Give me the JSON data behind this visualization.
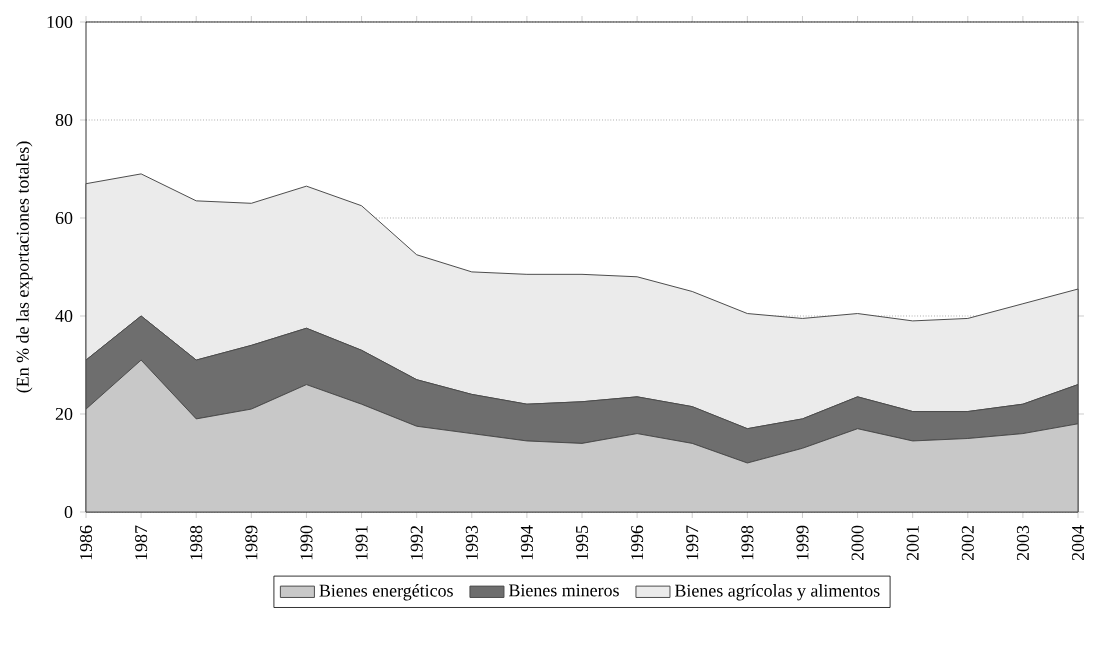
{
  "chart_data": {
    "type": "area",
    "stacked": true,
    "ylabel": "(En % de las exportaciones totales)",
    "categories": [
      "1986",
      "1987",
      "1988",
      "1989",
      "1990",
      "1991",
      "1992",
      "1993",
      "1994",
      "1995",
      "1996",
      "1997",
      "1998",
      "1999",
      "2000",
      "2001",
      "2002",
      "2003",
      "2004"
    ],
    "series": [
      {
        "name": "Bienes energéticos",
        "color": "#c8c8c8",
        "values": [
          21,
          31,
          19,
          21,
          26,
          22,
          17.5,
          16,
          14.5,
          14,
          16,
          14,
          10,
          13,
          17,
          14.5,
          15,
          16,
          18
        ]
      },
      {
        "name": "Bienes mineros",
        "color": "#6e6e6e",
        "values": [
          10,
          9,
          12,
          13,
          11.5,
          11,
          9.5,
          8,
          7.5,
          8.5,
          7.5,
          7.5,
          7,
          6,
          6.5,
          6,
          5.5,
          6,
          8
        ]
      },
      {
        "name": "Bienes agrícolas y alimentos",
        "color": "#ebebeb",
        "values": [
          36,
          29,
          32.5,
          29,
          29,
          29.5,
          25.5,
          25,
          26.5,
          26,
          24.5,
          23.5,
          23.5,
          20.5,
          17,
          18.5,
          19,
          20.5,
          19.5
        ]
      }
    ],
    "ylim": [
      0,
      100
    ],
    "yticks": [
      0,
      20,
      40,
      60,
      80,
      100
    ],
    "grid": "y",
    "legend": "bottom"
  }
}
